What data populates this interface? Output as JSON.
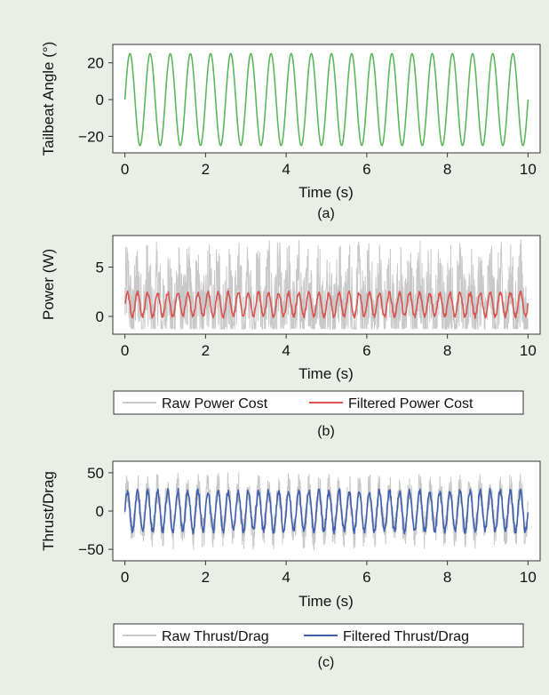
{
  "chart_data": [
    {
      "type": "line",
      "caption": "(a)",
      "xlabel": "Time (s)",
      "ylabel": "Tailbeat Angle (°)",
      "xlim": [
        -0.3,
        10.3
      ],
      "ylim": [
        -29,
        30
      ],
      "xticks": [
        0,
        2,
        4,
        6,
        8,
        10
      ],
      "yticks": [
        -20,
        0,
        20
      ],
      "grid": false,
      "legend": null,
      "series": [
        {
          "color": "#5cb85c",
          "kind": "sine",
          "amplitude": 25,
          "frequency": 2.0,
          "offset": 0,
          "t_start": 0,
          "t_end": 10
        }
      ]
    },
    {
      "type": "line",
      "caption": "(b)",
      "xlabel": "Time (s)",
      "ylabel": "Power (W)",
      "xlim": [
        -0.3,
        10.3
      ],
      "ylim": [
        -1.8,
        8.2
      ],
      "xticks": [
        0,
        2,
        4,
        6,
        8,
        10
      ],
      "yticks": [
        0,
        5
      ],
      "grid": false,
      "legend": "bottom",
      "series": [
        {
          "name": "Raw Power Cost",
          "color": "#c8c8c8",
          "kind": "noisy",
          "center": 1.5,
          "amplitude": 2.0,
          "frequency": 4.0,
          "noise": 4.5,
          "min": -1.3,
          "max": 7.8,
          "t_start": 0,
          "t_end": 10
        },
        {
          "name": "Filtered Power Cost",
          "color": "#d9534f",
          "kind": "filtered",
          "center": 1.2,
          "amplitude": 1.2,
          "frequency": 4.0,
          "noise": 0.2,
          "t_start": 0,
          "t_end": 10
        }
      ]
    },
    {
      "type": "line",
      "caption": "(c)",
      "xlabel": "Time (s)",
      "ylabel": "Thrust/Drag",
      "xlim": [
        -0.3,
        10.3
      ],
      "ylim": [
        -65,
        65
      ],
      "xticks": [
        0,
        2,
        4,
        6,
        8,
        10
      ],
      "yticks": [
        -50,
        0,
        50
      ],
      "grid": false,
      "legend": "bottom",
      "series": [
        {
          "name": "Raw Thrust/Drag",
          "color": "#c8c8c8",
          "kind": "noisy",
          "center": 0,
          "amplitude": 30,
          "frequency": 4.0,
          "noise": 22,
          "min": -62,
          "max": 60,
          "t_start": 0,
          "t_end": 10
        },
        {
          "name": "Filtered Thrust/Drag",
          "color": "#3f5fae",
          "kind": "filtered",
          "center": 0,
          "amplitude": 26,
          "frequency": 4.0,
          "noise": 4,
          "t_start": 0,
          "t_end": 10
        }
      ]
    }
  ]
}
